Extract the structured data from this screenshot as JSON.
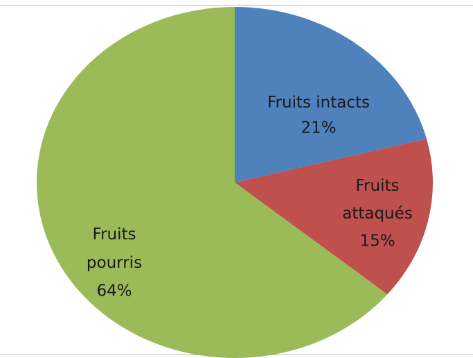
{
  "chart_data": {
    "type": "pie",
    "categories": [
      "Fruits intacts",
      "Fruits attaqués",
      "Fruits pourris"
    ],
    "values": [
      21,
      15,
      64
    ],
    "value_labels": [
      "21%",
      "15%",
      "64%"
    ],
    "colors": [
      "#4f81bd",
      "#c0504d",
      "#9bbb59"
    ]
  }
}
